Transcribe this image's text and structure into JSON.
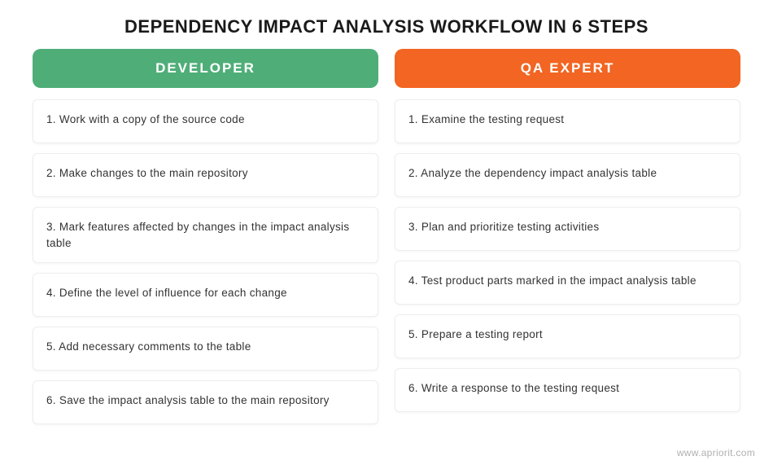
{
  "title": "DEPENDENCY IMPACT ANALYSIS WORKFLOW IN 6 STEPS",
  "columns": {
    "developer": {
      "label": "DEVELOPER",
      "header_color": "#4fae78",
      "steps": [
        "1. Work with a copy of the source code",
        "2. Make changes to the main repository",
        "3. Mark features affected by changes in the impact analysis table",
        "4. Define the level of influence for each change",
        "5. Add necessary comments to the table",
        "6. Save the impact analysis table to the main repository"
      ]
    },
    "qa": {
      "label": "QA EXPERT",
      "header_color": "#f26522",
      "steps": [
        "1. Examine the testing request",
        "2. Analyze the dependency impact analysis table",
        "3. Plan and prioritize testing activities",
        "4. Test product parts marked in the impact analysis table",
        "5. Prepare a testing report",
        "6. Write a response to the testing request"
      ]
    }
  },
  "footer": "www.apriorit.com",
  "style": {
    "title_fontsize": 22,
    "header_fontsize": 17,
    "step_fontsize": 13.5,
    "text_color": "#333333",
    "title_color": "#1a1a1a",
    "footer_color": "#b0b0b0",
    "card_border_color": "#eeeeee",
    "card_background": "#ffffff",
    "page_background": "#ffffff",
    "border_radius_header": 10,
    "border_radius_card": 6,
    "column_gap": 20,
    "page_padding_x": 40
  }
}
